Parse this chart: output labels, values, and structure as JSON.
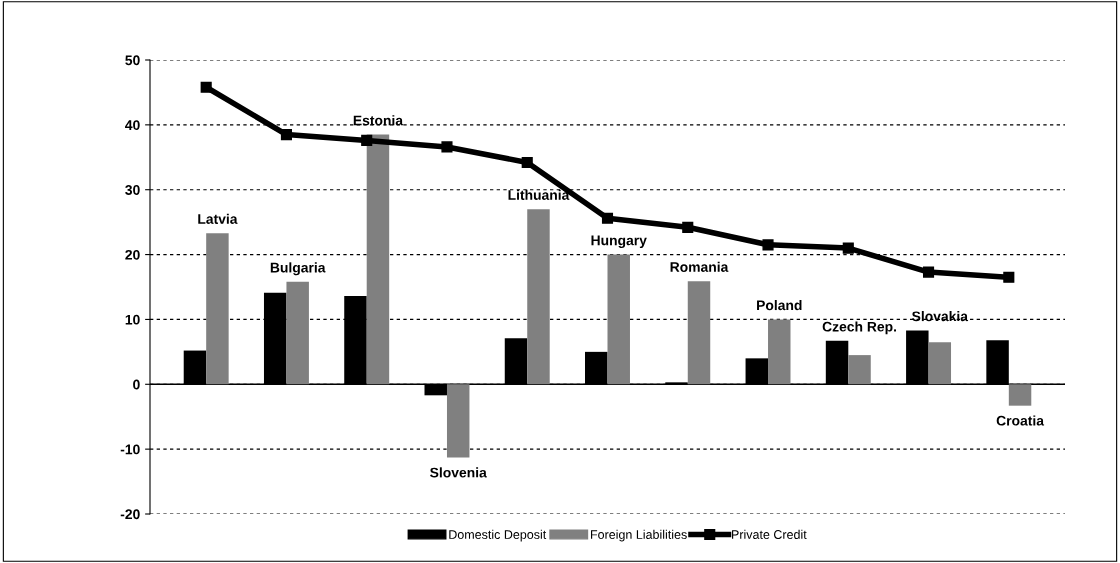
{
  "chart_data": {
    "type": "bar",
    "categories": [
      "Latvia",
      "Bulgaria",
      "Estonia",
      "Slovenia",
      "Lithuania",
      "Hungary",
      "Romania",
      "Poland",
      "Czech Rep.",
      "Slovakia",
      "Croatia"
    ],
    "series": [
      {
        "name": "Domestic Deposit",
        "color": "#000000",
        "values": [
          5.2,
          14.1,
          13.6,
          -1.7,
          7.1,
          5.0,
          0.3,
          4.0,
          6.7,
          8.3,
          6.8
        ]
      },
      {
        "name": "Foreign Liabilities",
        "color": "#808080",
        "values": [
          23.3,
          15.8,
          38.5,
          -11.3,
          27.0,
          20.0,
          15.9,
          10.0,
          4.5,
          6.5,
          -3.3
        ]
      },
      {
        "name": "Private Credit",
        "color": "#000000",
        "type": "line",
        "marker": "square",
        "values": [
          45.8,
          38.5,
          37.6,
          36.6,
          34.2,
          25.6,
          24.2,
          21.5,
          21.0,
          17.3,
          16.5
        ]
      }
    ],
    "ylim": [
      -20,
      50
    ],
    "yticks": [
      -20,
      -10,
      0,
      10,
      20,
      30,
      40,
      50
    ],
    "grid": "y",
    "legend": "bottom"
  }
}
